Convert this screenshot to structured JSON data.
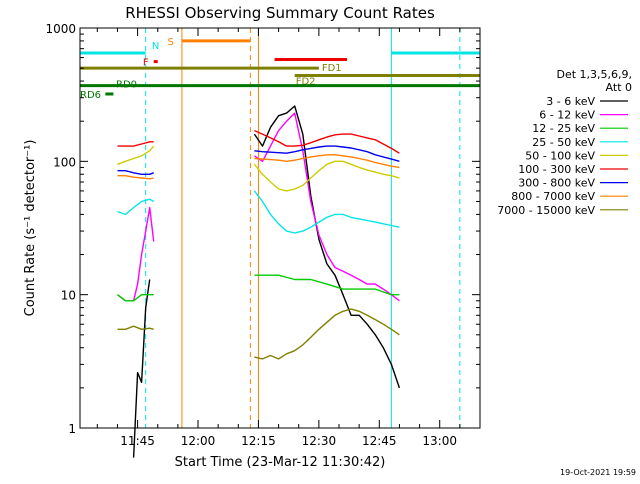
{
  "chart_data": {
    "type": "line",
    "title": "RHESSI Observing Summary Count Rates",
    "xlabel": "Start Time (23-Mar-12 11:30:42)",
    "ylabel": "Count Rate (s⁻¹ detector⁻¹)",
    "ylim": [
      1,
      1000
    ],
    "yscale": "log",
    "xlim": [
      "11:30:42",
      "13:10:00"
    ],
    "x_ticks": [
      "11:45",
      "12:00",
      "12:15",
      "12:30",
      "12:45",
      "13:00"
    ],
    "y_ticks": [
      "1",
      "10",
      "100",
      "1000"
    ],
    "legend_header": [
      "Det 1,3,5,6,9,",
      "Att 0"
    ],
    "legend_position": "right",
    "timestamp": "19-Oct-2021 19:59",
    "series": [
      {
        "name": "3 - 6 keV",
        "color": "#000000",
        "segments": [
          {
            "x": [
              "11:44",
              "11:45",
              "11:46",
              "11:47",
              "11:48"
            ],
            "y": [
              0.6,
              2.6,
              2.2,
              8,
              13
            ]
          },
          {
            "x": [
              "12:14",
              "12:16",
              "12:18",
              "12:20",
              "12:22",
              "12:24",
              "12:26",
              "12:28",
              "12:30",
              "12:32",
              "12:34",
              "12:36",
              "12:38",
              "12:40",
              "12:42",
              "12:44",
              "12:46",
              "12:48",
              "12:50"
            ],
            "y": [
              160,
              130,
              180,
              220,
              230,
              260,
              160,
              55,
              26,
              17,
              14,
              10,
              7,
              7,
              6,
              5,
              4,
              3,
              2
            ]
          }
        ]
      },
      {
        "name": "6 - 12 keV",
        "color": "#ff00ff",
        "segments": [
          {
            "x": [
              "11:40",
              "11:42",
              "11:44",
              "11:45",
              "11:46",
              "11:47",
              "11:48",
              "11:49"
            ],
            "y": [
              10,
              9,
              9,
              12,
              20,
              30,
              45,
              25
            ]
          },
          {
            "x": [
              "12:14",
              "12:16",
              "12:18",
              "12:20",
              "12:22",
              "12:24",
              "12:26",
              "12:28",
              "12:30",
              "12:32",
              "12:34",
              "12:36",
              "12:38",
              "12:40",
              "12:42",
              "12:44",
              "12:46",
              "12:48",
              "12:50"
            ],
            "y": [
              110,
              100,
              130,
              170,
              200,
              230,
              120,
              50,
              28,
              20,
              16,
              15,
              14,
              13,
              12,
              12,
              11,
              10,
              9
            ]
          }
        ]
      },
      {
        "name": "12 - 25 keV",
        "color": "#00cc00",
        "segments": [
          {
            "x": [
              "11:40",
              "11:42",
              "11:44",
              "11:46",
              "11:48",
              "11:49"
            ],
            "y": [
              10,
              9,
              9,
              10,
              10,
              10
            ]
          },
          {
            "x": [
              "12:14",
              "12:16",
              "12:20",
              "12:24",
              "12:28",
              "12:32",
              "12:36",
              "12:40",
              "12:44",
              "12:48",
              "12:50"
            ],
            "y": [
              14,
              14,
              14,
              13,
              13,
              12,
              11,
              11,
              11,
              10,
              10
            ]
          }
        ]
      },
      {
        "name": "25 - 50 keV",
        "color": "#00e5e5",
        "segments": [
          {
            "x": [
              "11:40",
              "11:42",
              "11:44",
              "11:46",
              "11:48",
              "11:49"
            ],
            "y": [
              42,
              40,
              45,
              50,
              52,
              50
            ]
          },
          {
            "x": [
              "12:14",
              "12:16",
              "12:18",
              "12:20",
              "12:22",
              "12:24",
              "12:26",
              "12:28",
              "12:30",
              "12:32",
              "12:34",
              "12:36",
              "12:38",
              "12:40",
              "12:42",
              "12:44",
              "12:46",
              "12:48",
              "12:50"
            ],
            "y": [
              60,
              50,
              40,
              34,
              30,
              29,
              30,
              32,
              35,
              38,
              40,
              40,
              38,
              37,
              36,
              35,
              34,
              33,
              32
            ]
          }
        ]
      },
      {
        "name": "50 - 100 keV",
        "color": "#cccc00",
        "segments": [
          {
            "x": [
              "11:40",
              "11:42",
              "11:44",
              "11:46",
              "11:48",
              "11:49"
            ],
            "y": [
              95,
              100,
              105,
              110,
              120,
              130
            ]
          },
          {
            "x": [
              "12:14",
              "12:16",
              "12:18",
              "12:20",
              "12:22",
              "12:24",
              "12:26",
              "12:28",
              "12:30",
              "12:32",
              "12:34",
              "12:36",
              "12:38",
              "12:40",
              "12:42",
              "12:44",
              "12:46",
              "12:48",
              "12:50"
            ],
            "y": [
              95,
              80,
              70,
              62,
              60,
              62,
              66,
              75,
              85,
              95,
              100,
              100,
              95,
              90,
              86,
              83,
              80,
              78,
              75
            ]
          }
        ]
      },
      {
        "name": "100 - 300 keV",
        "color": "#ee0000",
        "segments": [
          {
            "x": [
              "11:40",
              "11:42",
              "11:44",
              "11:46",
              "11:48",
              "11:49"
            ],
            "y": [
              130,
              130,
              130,
              135,
              140,
              140
            ]
          },
          {
            "x": [
              "12:14",
              "12:16",
              "12:18",
              "12:20",
              "12:22",
              "12:24",
              "12:26",
              "12:28",
              "12:30",
              "12:32",
              "12:34",
              "12:36",
              "12:38",
              "12:40",
              "12:42",
              "12:44",
              "12:46",
              "12:48",
              "12:50"
            ],
            "y": [
              170,
              160,
              150,
              140,
              130,
              130,
              132,
              138,
              145,
              152,
              158,
              160,
              160,
              155,
              150,
              145,
              135,
              125,
              115
            ]
          }
        ]
      },
      {
        "name": "300 - 800 keV",
        "color": "#0000ee",
        "segments": [
          {
            "x": [
              "11:40",
              "11:42",
              "11:44",
              "11:46",
              "11:48",
              "11:49"
            ],
            "y": [
              85,
              85,
              82,
              80,
              80,
              82
            ]
          },
          {
            "x": [
              "12:14",
              "12:16",
              "12:18",
              "12:20",
              "12:22",
              "12:24",
              "12:26",
              "12:28",
              "12:30",
              "12:32",
              "12:34",
              "12:36",
              "12:38",
              "12:40",
              "12:42",
              "12:44",
              "12:46",
              "12:48",
              "12:50"
            ],
            "y": [
              120,
              118,
              117,
              116,
              115,
              118,
              122,
              125,
              128,
              130,
              130,
              128,
              126,
              122,
              118,
              112,
              108,
              104,
              100
            ]
          }
        ]
      },
      {
        "name": "800 - 7000 keV",
        "color": "#ff8000",
        "segments": [
          {
            "x": [
              "11:40",
              "11:42",
              "11:44",
              "11:46",
              "11:48",
              "11:49"
            ],
            "y": [
              78,
              78,
              76,
              75,
              74,
              75
            ]
          },
          {
            "x": [
              "12:14",
              "12:16",
              "12:18",
              "12:20",
              "12:22",
              "12:24",
              "12:26",
              "12:28",
              "12:30",
              "12:32",
              "12:34",
              "12:36",
              "12:38",
              "12:40",
              "12:42",
              "12:44",
              "12:46",
              "12:48",
              "12:50"
            ],
            "y": [
              105,
              104,
              103,
              102,
              100,
              102,
              105,
              108,
              110,
              112,
              112,
              110,
              108,
              105,
              102,
              98,
              95,
              92,
              90
            ]
          }
        ]
      },
      {
        "name": "7000 - 15000 keV",
        "color": "#808000",
        "segments": [
          {
            "x": [
              "11:40",
              "11:42",
              "11:44",
              "11:46",
              "11:48",
              "11:49"
            ],
            "y": [
              5.5,
              5.5,
              5.8,
              5.5,
              5.6,
              5.5
            ]
          },
          {
            "x": [
              "12:14",
              "12:16",
              "12:18",
              "12:20",
              "12:22",
              "12:24",
              "12:26",
              "12:28",
              "12:30",
              "12:32",
              "12:34",
              "12:36",
              "12:38",
              "12:40",
              "12:42",
              "12:44",
              "12:46",
              "12:48",
              "12:50"
            ],
            "y": [
              3.4,
              3.3,
              3.5,
              3.3,
              3.6,
              3.8,
              4.2,
              4.8,
              5.5,
              6.2,
              7,
              7.5,
              7.8,
              7.5,
              7,
              6.5,
              6,
              5.5,
              5
            ]
          }
        ]
      }
    ],
    "flag_bars": [
      {
        "label": "",
        "color": "#00e5e5",
        "x1": "11:30:42",
        "x2": "11:47",
        "y": 650
      },
      {
        "label": "N",
        "color": "#00e5e5",
        "x1": "11:47",
        "x2": "11:47",
        "y": 650
      },
      {
        "label": "",
        "color": "#00e5e5",
        "x1": "12:48",
        "x2": "13:10",
        "y": 650
      },
      {
        "label": "S",
        "color": "#ff8000",
        "x1": "11:56",
        "x2": "12:13",
        "y": 800
      },
      {
        "label": "F",
        "color": "#ee0000",
        "x1": "11:49",
        "x2": "11:50",
        "y": 560
      },
      {
        "label": "",
        "color": "#ee0000",
        "x1": "12:19",
        "x2": "12:37",
        "y": 580
      },
      {
        "label": "FD1",
        "color": "#808000",
        "x1": "11:30:42",
        "x2": "12:30",
        "y": 500
      },
      {
        "label": "FD2",
        "color": "#808000",
        "x1": "12:24",
        "x2": "13:10",
        "y": 440
      },
      {
        "label": "RD0",
        "color": "#007700",
        "x1": "11:30:42",
        "x2": "13:10",
        "y": 370
      },
      {
        "label": "RD6",
        "color": "#007700",
        "x1": "11:37",
        "x2": "11:39",
        "y": 320
      }
    ],
    "vertical_lines": [
      {
        "x": "11:30:42",
        "color": "#00e5e5",
        "style": "solid"
      },
      {
        "x": "11:47",
        "color": "#00e5e5",
        "style": "dashed"
      },
      {
        "x": "11:56",
        "color": "#ff8000",
        "style": "solid"
      },
      {
        "x": "12:13",
        "color": "#ff8000",
        "style": "dashed"
      },
      {
        "x": "12:15",
        "color": "#ff8000",
        "style": "solid"
      },
      {
        "x": "12:48",
        "color": "#00e5e5",
        "style": "solid"
      },
      {
        "x": "13:05",
        "color": "#00e5e5",
        "style": "dashed"
      }
    ]
  }
}
